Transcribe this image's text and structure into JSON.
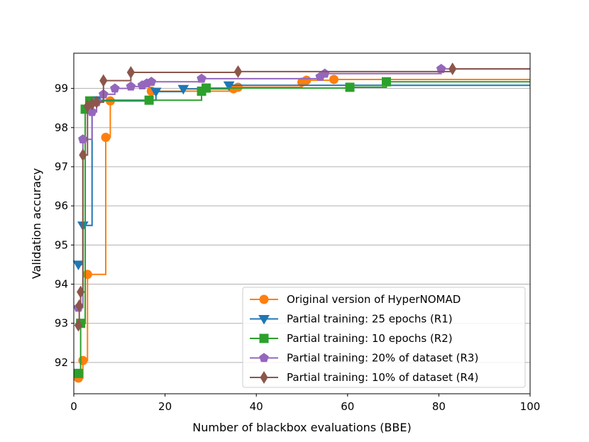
{
  "chart_data": {
    "type": "line",
    "step": true,
    "xlabel": "Number of blackbox evaluations (BBE)",
    "ylabel": "Validation accuracy",
    "xlim": [
      0,
      100
    ],
    "ylim": [
      91.2,
      99.9
    ],
    "xticks": [
      0,
      20,
      40,
      60,
      80,
      100
    ],
    "yticks": [
      92,
      93,
      94,
      95,
      96,
      97,
      98,
      99
    ],
    "grid": "horizontal",
    "legend_position": "bottom-right",
    "series": [
      {
        "name": "Original version of HyperNOMAD",
        "color": "#ff7f0e",
        "marker": "circle",
        "x": [
          1,
          2,
          3,
          7,
          8,
          17,
          35,
          36,
          50,
          51,
          57,
          100
        ],
        "y": [
          91.6,
          92.05,
          94.25,
          97.75,
          98.68,
          98.93,
          98.99,
          99.03,
          99.16,
          99.21,
          99.23,
          99.23
        ]
      },
      {
        "name": "Partial training: 25 epochs (R1)",
        "color": "#1f77b4",
        "marker": "triangle-down",
        "x": [
          1,
          2,
          4,
          5,
          18,
          24,
          34,
          100
        ],
        "y": [
          94.5,
          95.5,
          98.65,
          98.7,
          98.92,
          98.99,
          99.08,
          99.08
        ]
      },
      {
        "name": "Partial training: 10 epochs (R2)",
        "color": "#2ca02c",
        "marker": "square",
        "x": [
          1,
          1.5,
          2.5,
          3.5,
          16.5,
          28,
          29,
          60.5,
          68.5,
          100
        ],
        "y": [
          91.72,
          93.0,
          98.47,
          98.68,
          98.7,
          98.93,
          99.01,
          99.03,
          99.17,
          99.17
        ]
      },
      {
        "name": "Partial training: 20% of dataset (R3)",
        "color": "#9467bd",
        "marker": "pentagon",
        "x": [
          1,
          2,
          4,
          5,
          6.5,
          9,
          12.5,
          15,
          16,
          17,
          28,
          54,
          55,
          80.5,
          100
        ],
        "y": [
          93.4,
          97.7,
          98.4,
          98.65,
          98.85,
          99.0,
          99.05,
          99.08,
          99.13,
          99.17,
          99.25,
          99.3,
          99.38,
          99.5,
          99.5
        ]
      },
      {
        "name": "Partial training: 10% of dataset (R4)",
        "color": "#8c564b",
        "marker": "diamond",
        "x": [
          1,
          1.2,
          1.5,
          2,
          3,
          4,
          5,
          6.5,
          12.5,
          36,
          83,
          100
        ],
        "y": [
          92.95,
          93.45,
          93.8,
          97.3,
          98.55,
          98.6,
          98.65,
          99.2,
          99.41,
          99.43,
          99.5,
          99.5
        ]
      }
    ]
  }
}
